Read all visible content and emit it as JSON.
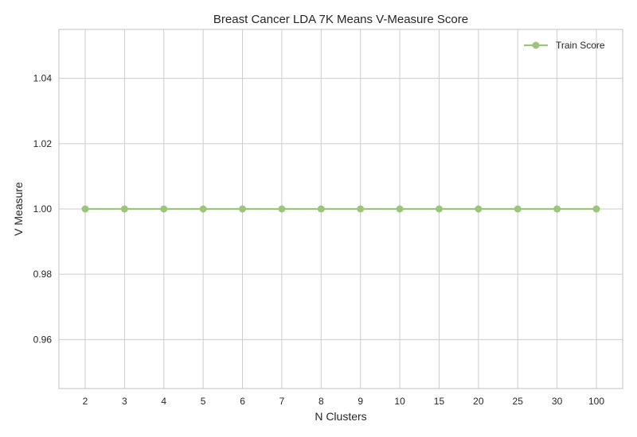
{
  "chart_data": {
    "type": "line",
    "title": "Breast Cancer LDA 7K Means V-Measure Score",
    "xlabel": "N Clusters",
    "ylabel": "V Measure",
    "categories": [
      "2",
      "3",
      "4",
      "5",
      "6",
      "7",
      "8",
      "9",
      "10",
      "15",
      "20",
      "25",
      "30",
      "100"
    ],
    "series": [
      {
        "name": "Train Score",
        "color": "#9bc57a",
        "values": [
          1.0,
          1.0,
          1.0,
          1.0,
          1.0,
          1.0,
          1.0,
          1.0,
          1.0,
          1.0,
          1.0,
          1.0,
          1.0,
          1.0
        ]
      }
    ],
    "ylim": [
      0.945,
      1.055
    ],
    "yticks": [
      "0.96",
      "0.98",
      "1.00",
      "1.02",
      "1.04"
    ],
    "grid": true,
    "legend_position": "top-right"
  }
}
